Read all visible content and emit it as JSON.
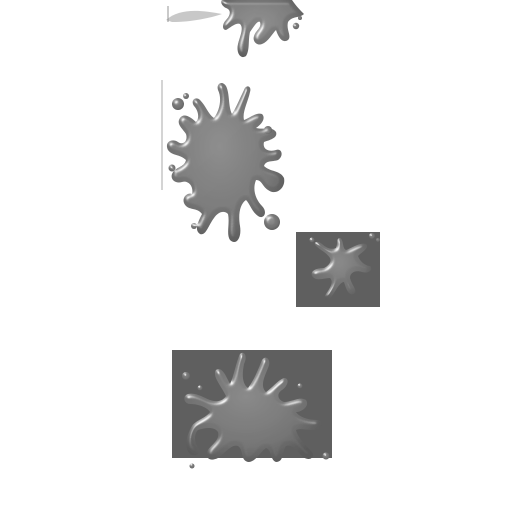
{
  "sprite_sheet": {
    "background_color": "#ffffff",
    "splat_fill_color": "#6f6f6f",
    "splat_highlight_color": "#e6e6e6",
    "splat_shadow_color": "#2e2e2e",
    "panel_color": "#5f5f5f",
    "sprites": [
      {
        "label": "splat-top-partial"
      },
      {
        "label": "splat-large"
      },
      {
        "label": "splat-small-on-panel"
      },
      {
        "label": "splat-bottom-on-panel"
      }
    ]
  }
}
